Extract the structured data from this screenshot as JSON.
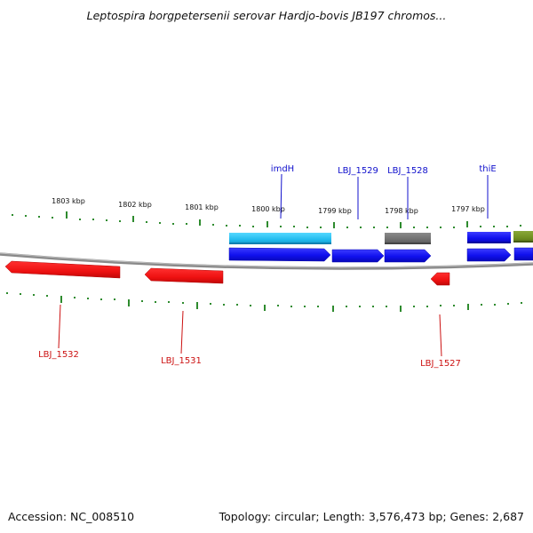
{
  "title": "Leptospira borgpetersenii serovar Hardjo-bovis JB197 chromos...",
  "footer": {
    "accession": "Accession: NC_008510",
    "topology": "Topology: circular; Length: 3,576,473 bp; Genes: 2,687"
  },
  "colors": {
    "backbone": "#8a8a8a",
    "tick": "#2e8b2e",
    "tick_label": "#111111",
    "forward_gene": "#1010ee",
    "reverse_gene": "#ee1111",
    "forward_label": "#1010cc",
    "reverse_label": "#cc1111",
    "cds_cyan": "#22bbee",
    "cds_gray": "#707070",
    "cds_olive": "#6f8f20"
  },
  "ticks": [
    "1803 kbp",
    "1802 kbp",
    "1801 kbp",
    "1800 kbp",
    "1799 kbp",
    "1798 kbp",
    "1797 kbp"
  ],
  "genes": {
    "forward": [
      {
        "name": "imdH",
        "label": "imdH"
      },
      {
        "name": "LBJ_1529",
        "label": "LBJ_1529"
      },
      {
        "name": "LBJ_1528",
        "label": "LBJ_1528"
      },
      {
        "name": "thiE",
        "label": "thiE"
      }
    ],
    "reverse": [
      {
        "name": "LBJ_1532",
        "label": "LBJ_1532"
      },
      {
        "name": "LBJ_1531",
        "label": "LBJ_1531"
      },
      {
        "name": "LBJ_1527",
        "label": "LBJ_1527"
      }
    ]
  }
}
